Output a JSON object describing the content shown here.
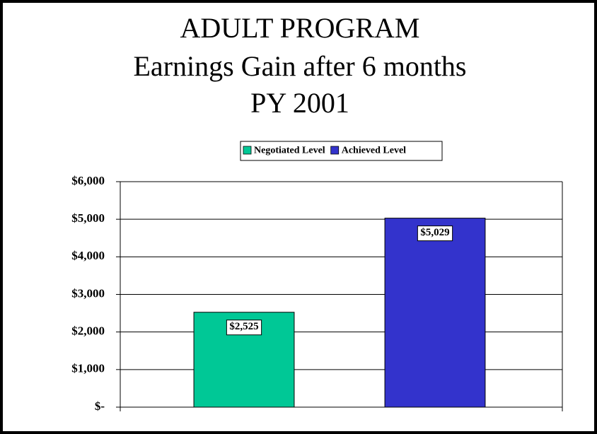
{
  "chart_data": {
    "type": "bar",
    "title": [
      "ADULT PROGRAM",
      "Earnings Gain after 6 months",
      "PY 2001"
    ],
    "categories": [
      null
    ],
    "series": [
      {
        "name": "Negotiated Level",
        "color": "#00c896",
        "values": [
          2525
        ],
        "value_labels": [
          "$2,525"
        ]
      },
      {
        "name": "Achieved Level",
        "color": "#3333cc",
        "values": [
          5029
        ],
        "value_labels": [
          "$5,029"
        ]
      }
    ],
    "ylim": [
      0,
      6000
    ],
    "yticks": [
      {
        "value": 0,
        "label": "$-"
      },
      {
        "value": 1000,
        "label": "$1,000"
      },
      {
        "value": 2000,
        "label": "$2,000"
      },
      {
        "value": 3000,
        "label": "$3,000"
      },
      {
        "value": 4000,
        "label": "$4,000"
      },
      {
        "value": 5000,
        "label": "$5,000"
      },
      {
        "value": 6000,
        "label": "$6,000"
      }
    ],
    "grid": true,
    "legend": "top"
  }
}
